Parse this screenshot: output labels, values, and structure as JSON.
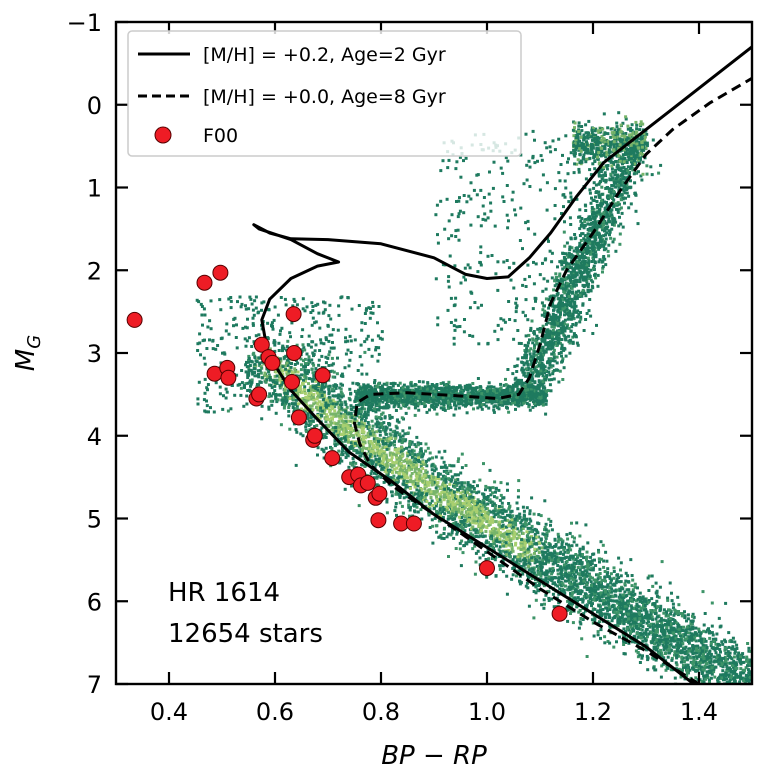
{
  "chart_data": {
    "type": "scatter",
    "xlabel": "BP − RP",
    "ylabel": "M_G",
    "xlim": [
      0.3,
      1.5
    ],
    "ylim": [
      7,
      -1
    ],
    "y_inverted": true,
    "x_ticks": [
      {
        "value": 0.4,
        "label": "0.4"
      },
      {
        "value": 0.6,
        "label": "0.6"
      },
      {
        "value": 0.8,
        "label": "0.8"
      },
      {
        "value": 1.0,
        "label": "1.0"
      },
      {
        "value": 1.2,
        "label": "1.2"
      },
      {
        "value": 1.4,
        "label": "1.4"
      }
    ],
    "y_ticks": [
      {
        "value": -1,
        "label": "−1"
      },
      {
        "value": 0,
        "label": "0"
      },
      {
        "value": 1,
        "label": "1"
      },
      {
        "value": 2,
        "label": "2"
      },
      {
        "value": 3,
        "label": "3"
      },
      {
        "value": 4,
        "label": "4"
      },
      {
        "value": 5,
        "label": "5"
      },
      {
        "value": 6,
        "label": "6"
      },
      {
        "value": 7,
        "label": "7"
      }
    ],
    "grid": false,
    "legend_position": "top-left",
    "annotation": {
      "line1": "HR 1614",
      "line2": "12654 stars"
    },
    "density_colors": [
      "#1e7a5f",
      "#3d9468",
      "#77b46a",
      "#a8cf70"
    ],
    "isochrones": [
      {
        "label": "[M/H] = +0.2, Age=2 Gyr",
        "style": "solid",
        "color": "#000000",
        "points": [
          [
            1.39,
            7.0
          ],
          [
            1.3,
            6.55
          ],
          [
            1.2,
            6.15
          ],
          [
            1.1,
            5.75
          ],
          [
            1.0,
            5.35
          ],
          [
            0.9,
            4.95
          ],
          [
            0.82,
            4.55
          ],
          [
            0.74,
            4.2
          ],
          [
            0.68,
            3.8
          ],
          [
            0.63,
            3.45
          ],
          [
            0.6,
            3.15
          ],
          [
            0.585,
            2.95
          ],
          [
            0.575,
            2.6
          ],
          [
            0.59,
            2.35
          ],
          [
            0.63,
            2.1
          ],
          [
            0.68,
            1.95
          ],
          [
            0.72,
            1.9
          ],
          [
            0.68,
            1.8
          ],
          [
            0.63,
            1.63
          ],
          [
            0.57,
            1.5
          ],
          [
            0.56,
            1.45
          ],
          [
            0.59,
            1.55
          ],
          [
            0.63,
            1.62
          ],
          [
            0.7,
            1.63
          ],
          [
            0.8,
            1.68
          ],
          [
            0.9,
            1.85
          ],
          [
            0.96,
            2.05
          ],
          [
            1.0,
            2.1
          ],
          [
            1.04,
            2.08
          ],
          [
            1.08,
            1.85
          ],
          [
            1.12,
            1.55
          ],
          [
            1.17,
            1.1
          ],
          [
            1.22,
            0.7
          ],
          [
            1.28,
            0.4
          ],
          [
            1.35,
            0.05
          ],
          [
            1.42,
            -0.3
          ],
          [
            1.5,
            -0.7
          ]
        ]
      },
      {
        "label": "[M/H] = +0.0, Age=8 Gyr",
        "style": "dashed",
        "color": "#000000",
        "points": [
          [
            1.4,
            7.0
          ],
          [
            1.3,
            6.6
          ],
          [
            1.2,
            6.25
          ],
          [
            1.1,
            5.85
          ],
          [
            1.0,
            5.4
          ],
          [
            0.9,
            4.95
          ],
          [
            0.82,
            4.6
          ],
          [
            0.78,
            4.35
          ],
          [
            0.76,
            4.1
          ],
          [
            0.75,
            3.85
          ],
          [
            0.755,
            3.6
          ],
          [
            0.78,
            3.5
          ],
          [
            0.85,
            3.48
          ],
          [
            0.95,
            3.52
          ],
          [
            1.02,
            3.55
          ],
          [
            1.06,
            3.5
          ],
          [
            1.08,
            3.3
          ],
          [
            1.1,
            2.9
          ],
          [
            1.12,
            2.4
          ],
          [
            1.15,
            2.0
          ],
          [
            1.2,
            1.55
          ],
          [
            1.25,
            1.05
          ],
          [
            1.3,
            0.6
          ],
          [
            1.35,
            0.3
          ],
          [
            1.42,
            -0.02
          ],
          [
            1.5,
            -0.32
          ]
        ]
      }
    ],
    "series": [
      {
        "name": "F00",
        "marker": "circle",
        "color": "#ee1c25",
        "points": [
          [
            0.335,
            2.6
          ],
          [
            0.467,
            2.15
          ],
          [
            0.497,
            2.03
          ],
          [
            0.486,
            3.25
          ],
          [
            0.51,
            3.18
          ],
          [
            0.512,
            3.3
          ],
          [
            0.565,
            3.55
          ],
          [
            0.57,
            3.5
          ],
          [
            0.575,
            2.9
          ],
          [
            0.588,
            3.05
          ],
          [
            0.595,
            3.12
          ],
          [
            0.632,
            3.35
          ],
          [
            0.635,
            2.53
          ],
          [
            0.636,
            3.0
          ],
          [
            0.645,
            3.78
          ],
          [
            0.672,
            4.05
          ],
          [
            0.675,
            4.0
          ],
          [
            0.69,
            3.27
          ],
          [
            0.708,
            4.27
          ],
          [
            0.74,
            4.5
          ],
          [
            0.757,
            4.47
          ],
          [
            0.762,
            4.6
          ],
          [
            0.775,
            4.57
          ],
          [
            0.79,
            4.75
          ],
          [
            0.797,
            4.7
          ],
          [
            0.795,
            5.02
          ],
          [
            0.838,
            5.06
          ],
          [
            0.862,
            5.06
          ],
          [
            1.0,
            5.6
          ],
          [
            1.137,
            6.15
          ]
        ]
      }
    ]
  }
}
